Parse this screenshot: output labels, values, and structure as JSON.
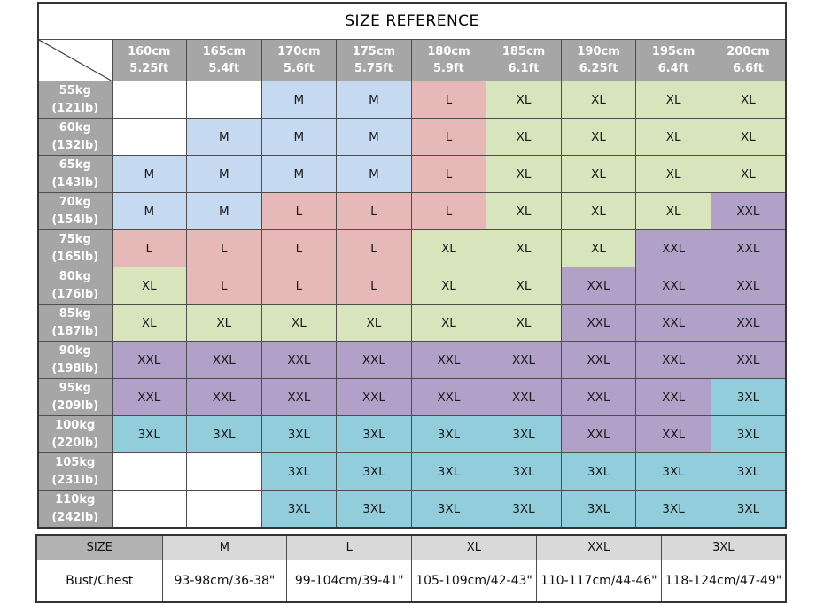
{
  "colors": {
    "header_bg": "#a6a6a6",
    "header_text": "#ffffff",
    "grid_border": "#4d4d4d",
    "outer_border": "#333333",
    "empty_cell": "#ffffff",
    "summary_corner_bg": "#b3b3b3",
    "summary_header_bg": "#d9d9d9",
    "size_fills": {
      "M": "#c5d9f1",
      "L": "#e6b8b7",
      "XL": "#d8e4bc",
      "XXL": "#b1a0c7",
      "3XL": "#92cddc"
    }
  },
  "chart_data": {
    "type": "table",
    "title": "SIZE REFERENCE",
    "x_axis": "height",
    "y_axis": "weight",
    "columns": [
      {
        "cm": "160cm",
        "ft": "5.25ft"
      },
      {
        "cm": "165cm",
        "ft": "5.4ft"
      },
      {
        "cm": "170cm",
        "ft": "5.6ft"
      },
      {
        "cm": "175cm",
        "ft": "5.75ft"
      },
      {
        "cm": "180cm",
        "ft": "5.9ft"
      },
      {
        "cm": "185cm",
        "ft": "6.1ft"
      },
      {
        "cm": "190cm",
        "ft": "6.25ft"
      },
      {
        "cm": "195cm",
        "ft": "6.4ft"
      },
      {
        "cm": "200cm",
        "ft": "6.6ft"
      }
    ],
    "rows": [
      {
        "kg": "55kg",
        "lb": "(121lb)",
        "sizes": [
          "",
          "",
          "M",
          "M",
          "L",
          "XL",
          "XL",
          "XL",
          "XL"
        ]
      },
      {
        "kg": "60kg",
        "lb": "(132lb)",
        "sizes": [
          "",
          "M",
          "M",
          "M",
          "L",
          "XL",
          "XL",
          "XL",
          "XL"
        ]
      },
      {
        "kg": "65kg",
        "lb": "(143lb)",
        "sizes": [
          "M",
          "M",
          "M",
          "M",
          "L",
          "XL",
          "XL",
          "XL",
          "XL"
        ]
      },
      {
        "kg": "70kg",
        "lb": "(154lb)",
        "sizes": [
          "M",
          "M",
          "L",
          "L",
          "L",
          "XL",
          "XL",
          "XL",
          "XXL"
        ]
      },
      {
        "kg": "75kg",
        "lb": "(165lb)",
        "sizes": [
          "L",
          "L",
          "L",
          "L",
          "XL",
          "XL",
          "XL",
          "XXL",
          "XXL"
        ]
      },
      {
        "kg": "80kg",
        "lb": "(176lb)",
        "sizes": [
          "XL",
          "L",
          "L",
          "L",
          "XL",
          "XL",
          "XXL",
          "XXL",
          "XXL"
        ]
      },
      {
        "kg": "85kg",
        "lb": "(187lb)",
        "sizes": [
          "XL",
          "XL",
          "XL",
          "XL",
          "XL",
          "XL",
          "XXL",
          "XXL",
          "XXL"
        ]
      },
      {
        "kg": "90kg",
        "lb": "(198lb)",
        "sizes": [
          "XXL",
          "XXL",
          "XXL",
          "XXL",
          "XXL",
          "XXL",
          "XXL",
          "XXL",
          "XXL"
        ]
      },
      {
        "kg": "95kg",
        "lb": "(209lb)",
        "sizes": [
          "XXL",
          "XXL",
          "XXL",
          "XXL",
          "XXL",
          "XXL",
          "XXL",
          "XXL",
          "3XL"
        ]
      },
      {
        "kg": "100kg",
        "lb": "(220lb)",
        "sizes": [
          "3XL",
          "3XL",
          "3XL",
          "3XL",
          "3XL",
          "3XL",
          "XXL",
          "XXL",
          "3XL"
        ]
      },
      {
        "kg": "105kg",
        "lb": "(231lb)",
        "sizes": [
          "",
          "",
          "3XL",
          "3XL",
          "3XL",
          "3XL",
          "3XL",
          "3XL",
          "3XL"
        ]
      },
      {
        "kg": "110kg",
        "lb": "(242lb)",
        "sizes": [
          "",
          "",
          "3XL",
          "3XL",
          "3XL",
          "3XL",
          "3XL",
          "3XL",
          "3XL"
        ]
      }
    ],
    "legend": {
      "corner_label": "SIZE",
      "sizes": [
        "M",
        "L",
        "XL",
        "XXL",
        "3XL"
      ],
      "row_label": "Bust/Chest",
      "bust_chest": [
        "93-98cm/36-38\"",
        "99-104cm/39-41\"",
        "105-109cm/42-43\"",
        "110-117cm/44-46\"",
        "118-124cm/47-49\""
      ]
    }
  }
}
